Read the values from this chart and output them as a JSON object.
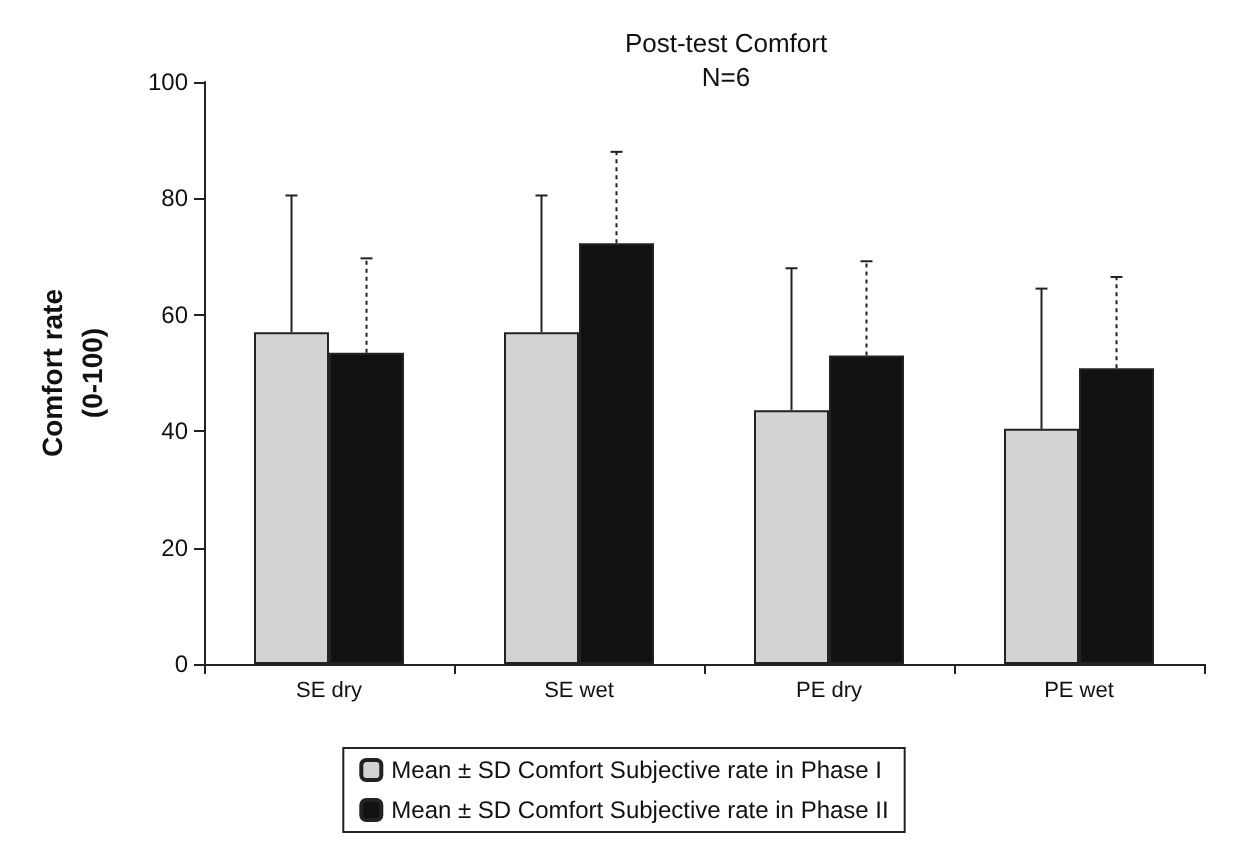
{
  "chart_data": {
    "type": "bar",
    "title": "Post-test Comfort",
    "subtitle": "N=6",
    "ylabel": "Comfort rate\n(0-100)",
    "categories": [
      "SE dry",
      "SE wet",
      "PE dry",
      "PE wet"
    ],
    "series": [
      {
        "name": "Mean ± SD Comfort Subjective rate in Phase I",
        "color": "#d3d3d3",
        "values": [
          57,
          57,
          43.6,
          40.4
        ],
        "errors": [
          [
            57,
            80.5
          ],
          [
            57,
            80.5
          ],
          [
            43.6,
            68
          ],
          [
            40.4,
            64.5
          ]
        ],
        "line_style": "solid"
      },
      {
        "name": "Mean ± SD Comfort Subjective rate in Phase II",
        "color": "#111111",
        "values": [
          53.5,
          72.3,
          53,
          50.8
        ],
        "errors": [
          [
            53.5,
            69.7
          ],
          [
            72.3,
            88
          ],
          [
            53,
            69.2
          ],
          [
            50.8,
            66.5
          ]
        ],
        "line_style": "dotted"
      }
    ],
    "ylim": [
      0,
      100
    ],
    "yticks": [
      0,
      20,
      40,
      60,
      80,
      100
    ],
    "grid": false,
    "legend": "bottom"
  }
}
